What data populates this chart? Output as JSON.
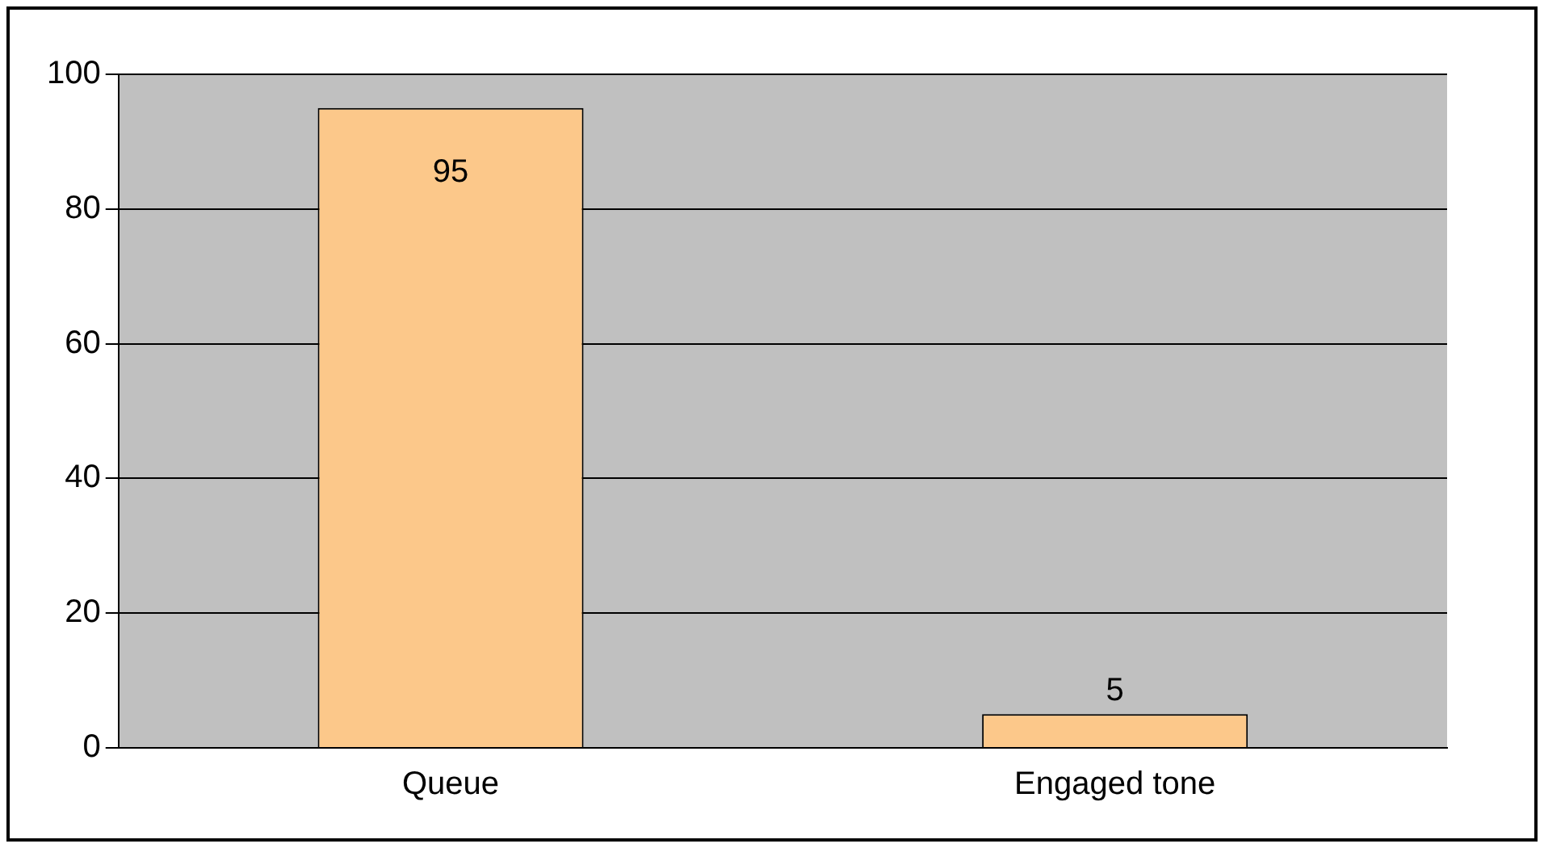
{
  "chart_data": {
    "type": "bar",
    "categories": [
      "Queue",
      "Engaged tone"
    ],
    "values": [
      95,
      5
    ],
    "color": "#fcc88a",
    "ylim": [
      0,
      100
    ],
    "yticks": [
      0,
      20,
      40,
      60,
      80,
      100
    ],
    "grid": "y",
    "data_labels": true,
    "legend": false
  }
}
